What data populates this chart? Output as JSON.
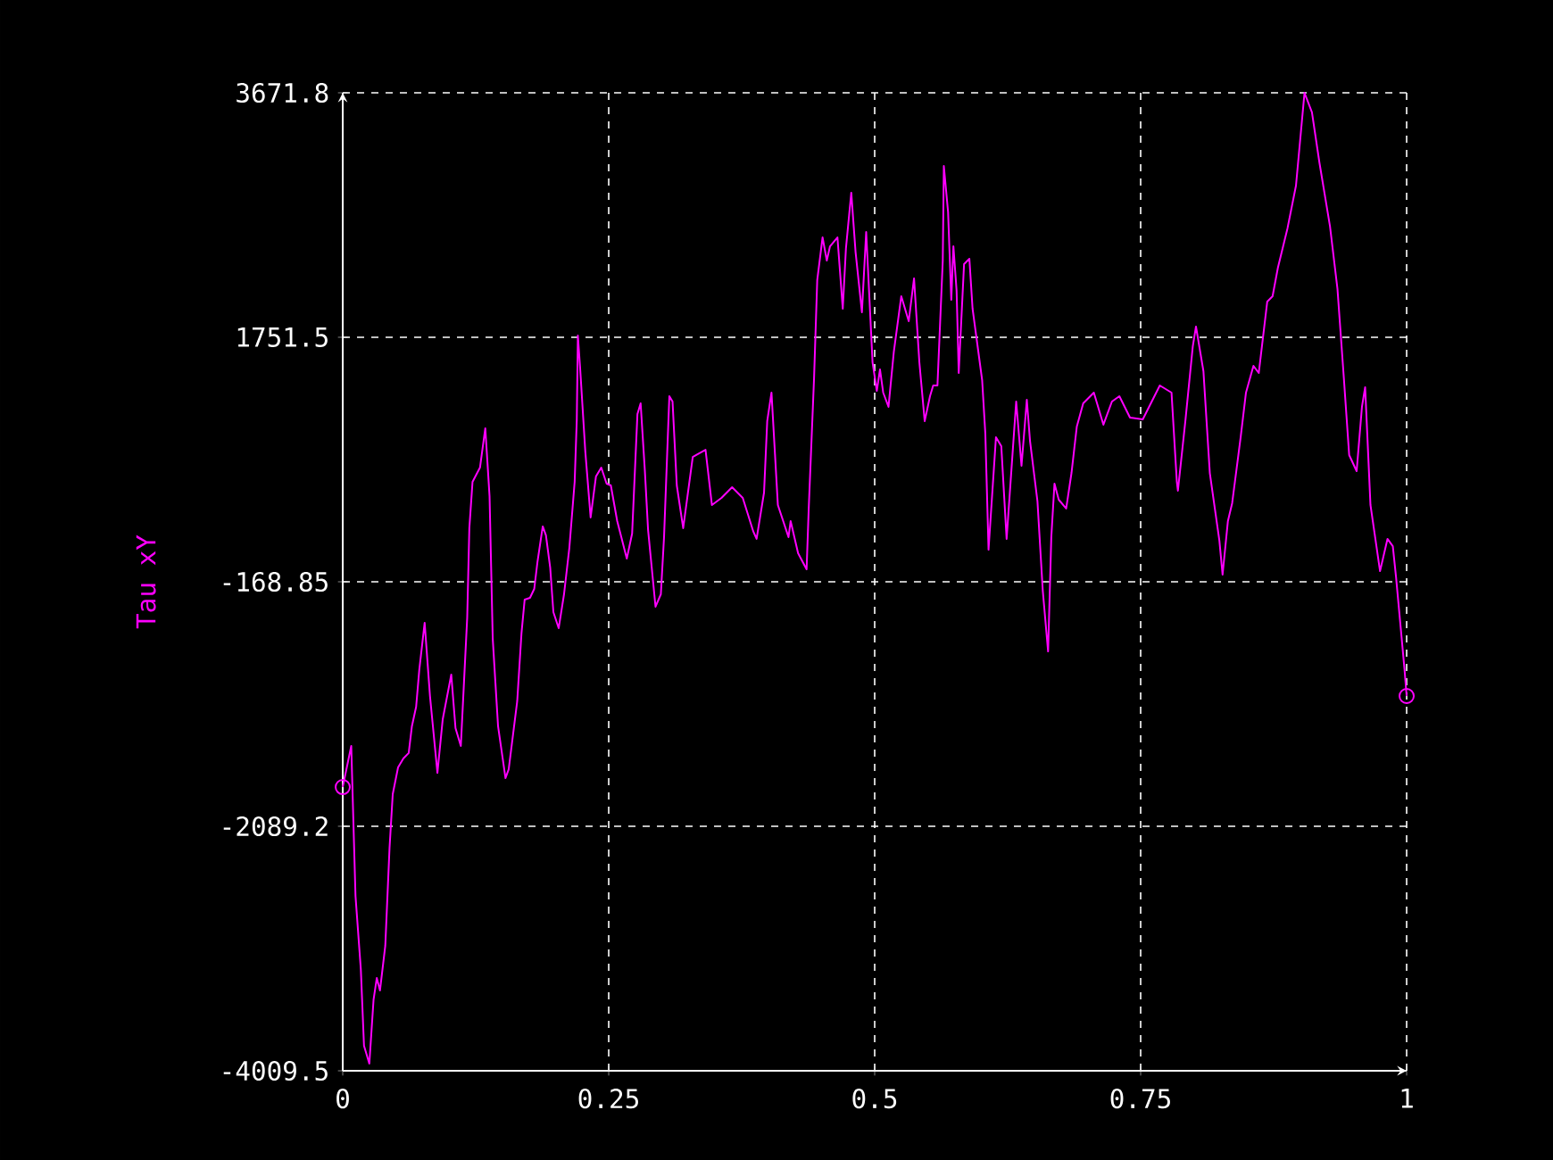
{
  "chart_data": {
    "type": "line",
    "ylabel": "Tau xY",
    "x": [
      0,
      0.008,
      0.012,
      0.017,
      0.02,
      0.025,
      0.029,
      0.032,
      0.035,
      0.04,
      0.044,
      0.047,
      0.052,
      0.057,
      0.062,
      0.065,
      0.069,
      0.072,
      0.077,
      0.082,
      0.089,
      0.094,
      0.102,
      0.106,
      0.111,
      0.117,
      0.119,
      0.122,
      0.129,
      0.134,
      0.138,
      0.141,
      0.146,
      0.153,
      0.156,
      0.164,
      0.168,
      0.171,
      0.176,
      0.18,
      0.183,
      0.188,
      0.191,
      0.195,
      0.198,
      0.203,
      0.208,
      0.213,
      0.218,
      0.22,
      0.221,
      0.223,
      0.228,
      0.233,
      0.238,
      0.243,
      0.248,
      0.252,
      0.258,
      0.267,
      0.272,
      0.277,
      0.28,
      0.284,
      0.287,
      0.294,
      0.299,
      0.302,
      0.307,
      0.31,
      0.314,
      0.32,
      0.329,
      0.341,
      0.347,
      0.356,
      0.366,
      0.376,
      0.386,
      0.389,
      0.396,
      0.399,
      0.403,
      0.409,
      0.419,
      0.421,
      0.428,
      0.436,
      0.438,
      0.443,
      0.446,
      0.451,
      0.455,
      0.458,
      0.465,
      0.47,
      0.473,
      0.478,
      0.482,
      0.488,
      0.492,
      0.498,
      0.502,
      0.505,
      0.508,
      0.513,
      0.518,
      0.525,
      0.532,
      0.537,
      0.542,
      0.547,
      0.552,
      0.555,
      0.559,
      0.564,
      0.565,
      0.569,
      0.572,
      0.574,
      0.577,
      0.579,
      0.584,
      0.589,
      0.592,
      0.601,
      0.604,
      0.607,
      0.614,
      0.619,
      0.624,
      0.633,
      0.638,
      0.643,
      0.646,
      0.653,
      0.658,
      0.663,
      0.666,
      0.669,
      0.673,
      0.68,
      0.685,
      0.69,
      0.696,
      0.706,
      0.715,
      0.723,
      0.73,
      0.74,
      0.752,
      0.768,
      0.779,
      0.784,
      0.785,
      0.792,
      0.799,
      0.802,
      0.809,
      0.815,
      0.824,
      0.827,
      0.832,
      0.836,
      0.844,
      0.849,
      0.856,
      0.861,
      0.869,
      0.874,
      0.879,
      0.888,
      0.896,
      0.904,
      0.911,
      0.918,
      0.928,
      0.935,
      0.941,
      0.946,
      0.953,
      0.958,
      0.961,
      0.966,
      0.975,
      0.982,
      0.987,
      0.99,
      0.998,
      1
    ],
    "series": [
      {
        "color": "#ff00ff",
        "values": [
          -1781,
          -1458,
          -2636,
          -3211,
          -3813,
          -3953,
          -3449,
          -3281,
          -3379,
          -3028,
          -2257,
          -1837,
          -1627,
          -1557,
          -1514,
          -1304,
          -1150,
          -856,
          -491,
          -1066,
          -1669,
          -1248,
          -898,
          -1318,
          -1458,
          -449,
          252,
          616,
          728,
          1037,
          504,
          -617,
          -1304,
          -1711,
          -1641,
          -1108,
          -575,
          -309,
          -295,
          -225,
          -15,
          266,
          196,
          -57,
          -407,
          -533,
          -267,
          97,
          616,
          1107,
          1765,
          1527,
          854,
          336,
          658,
          728,
          602,
          588,
          308,
          13,
          210,
          1149,
          1233,
          700,
          238,
          -365,
          -267,
          182,
          1289,
          1247,
          588,
          252,
          812,
          868,
          434,
          490,
          574,
          490,
          224,
          168,
          532,
          1093,
          1317,
          434,
          182,
          308,
          55,
          -71,
          406,
          1429,
          2200,
          2536,
          2354,
          2466,
          2536,
          1976,
          2452,
          2887,
          2424,
          1948,
          2578,
          1555,
          1331,
          1499,
          1317,
          1205,
          1639,
          2074,
          1878,
          2214,
          1555,
          1093,
          1289,
          1373,
          1373,
          2354,
          3097,
          2733,
          2046,
          2466,
          2116,
          1471,
          2326,
          2368,
          1976,
          1415,
          995,
          83,
          967,
          896,
          168,
          1247,
          742,
          1261,
          938,
          462,
          -239,
          -716,
          182,
          602,
          476,
          406,
          686,
          1051,
          1233,
          1317,
          1065,
          1247,
          1289,
          1121,
          1107,
          1373,
          1317,
          616,
          546,
          1093,
          1681,
          1836,
          1485,
          686,
          154,
          -113,
          308,
          448,
          967,
          1317,
          1527,
          1471,
          2032,
          2074,
          2298,
          2607,
          2943,
          3671.8,
          3518,
          3125,
          2621,
          2130,
          1429,
          826,
          700,
          1205,
          1359,
          434,
          -85,
          168,
          111,
          -127,
          -856,
          -1066
        ]
      },
      {
        "type": "scatter",
        "color": "#ff00ff",
        "marker": "circle",
        "x": [
          0,
          1
        ],
        "values": [
          -1781,
          -1066
        ]
      }
    ],
    "xlim": [
      0,
      1
    ],
    "ylim": [
      -4009.5,
      3671.8
    ],
    "xticks": [
      0,
      0.25,
      0.5,
      0.75,
      1
    ],
    "yticks": [
      -4009.5,
      -2089.2,
      -168.85,
      1751.5,
      3671.8
    ],
    "grid": true
  }
}
